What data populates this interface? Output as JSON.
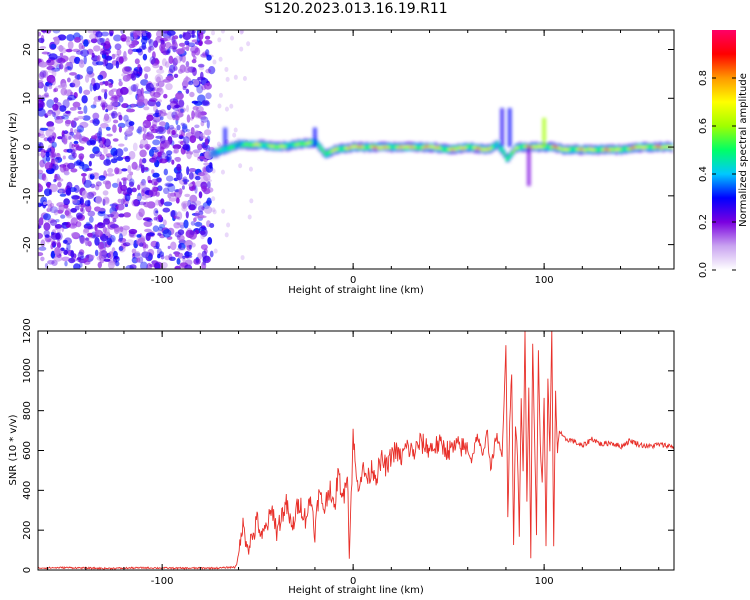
{
  "title": "S120.2023.013.16.19.R11",
  "colorbar": {
    "label": "Normalized spectral amplitude",
    "range": [
      0.0,
      1.0
    ],
    "ticks": [
      0.0,
      0.2,
      0.4,
      0.6,
      0.8
    ],
    "tick_labels": [
      "0.0",
      "0.2",
      "0.4",
      "0.6",
      "0.8"
    ],
    "colors": [
      "#ffffff",
      "#c9a3f0",
      "#7a00e0",
      "#0000ff",
      "#00c8ff",
      "#00ff66",
      "#a0ff00",
      "#ffff00",
      "#ff9900",
      "#ff0000",
      "#ff0066"
    ]
  },
  "chart_data": [
    {
      "type": "heatmap",
      "title": "",
      "xlabel": "Height of straight line (km)",
      "ylabel": "Frequency (Hz)",
      "xlim": [
        -165,
        168
      ],
      "ylim": [
        -25,
        24
      ],
      "x_ticks": [
        -100,
        0,
        100
      ],
      "x_tick_labels": [
        "-100",
        "0",
        "100"
      ],
      "y_ticks": [
        -20,
        -10,
        0,
        10,
        20
      ],
      "y_tick_labels": [
        "-20",
        "-10",
        "0",
        "10",
        "20"
      ],
      "noise_region_x": [
        -165,
        -74
      ],
      "signal_band": {
        "x": [
          -75,
          -68,
          -60,
          -50,
          -40,
          -30,
          -20,
          -15,
          -10,
          0,
          10,
          20,
          30,
          40,
          50,
          60,
          70,
          75,
          78,
          80,
          82,
          85,
          90,
          95,
          100,
          105,
          110,
          120,
          130,
          140,
          150,
          160,
          167
        ],
        "center_freq": [
          -1.5,
          -0.5,
          0.5,
          0.5,
          0.0,
          0.5,
          1.0,
          -1.5,
          -0.5,
          0.0,
          0.0,
          0.0,
          0.0,
          0.0,
          -0.5,
          0.0,
          -0.5,
          0.5,
          -1.0,
          -2.5,
          -1.5,
          0.0,
          0.0,
          0.0,
          0.0,
          0.0,
          -0.5,
          -0.5,
          -0.5,
          -0.5,
          0.0,
          0.0,
          0.0
        ],
        "peak_amplitude": [
          0.4,
          0.55,
          0.6,
          0.8,
          0.75,
          0.7,
          0.75,
          0.6,
          0.85,
          0.9,
          0.95,
          0.85,
          0.9,
          0.9,
          0.85,
          0.9,
          0.9,
          0.7,
          0.5,
          0.6,
          0.7,
          0.85,
          0.95,
          0.9,
          0.8,
          0.95,
          0.85,
          0.85,
          0.9,
          0.85,
          0.9,
          0.9,
          0.9
        ]
      }
    },
    {
      "type": "line",
      "title": "",
      "xlabel": "Height of straight line (km)",
      "ylabel": "SNR (10 * v/v)",
      "xlim": [
        -165,
        168
      ],
      "ylim": [
        0,
        1200
      ],
      "x_ticks": [
        -100,
        0,
        100
      ],
      "x_tick_labels": [
        "-100",
        "0",
        "100"
      ],
      "y_ticks": [
        0,
        200,
        400,
        600,
        800,
        1000,
        1200
      ],
      "y_tick_labels": [
        "0",
        "200",
        "400",
        "600",
        "800",
        "1000",
        "1200"
      ],
      "grid": false,
      "series": [
        {
          "color": "#e8302a",
          "x": [
            -165,
            -150,
            -130,
            -110,
            -90,
            -70,
            -62,
            -60,
            -58,
            -55,
            -52,
            -50,
            -48,
            -45,
            -42,
            -40,
            -38,
            -35,
            -32,
            -30,
            -28,
            -25,
            -22,
            -20,
            -18,
            -15,
            -12,
            -10,
            -8,
            -5,
            -3,
            -2,
            0,
            2,
            5,
            8,
            10,
            12,
            15,
            18,
            20,
            22,
            25,
            28,
            30,
            32,
            35,
            40,
            45,
            50,
            55,
            60,
            62,
            65,
            68,
            70,
            72,
            75,
            78,
            80,
            81,
            82,
            83,
            84,
            85,
            86,
            87,
            88,
            89,
            90,
            91,
            92,
            93,
            94,
            95,
            96,
            97,
            98,
            99,
            100,
            101,
            102,
            103,
            104,
            105,
            106,
            107,
            108,
            110,
            115,
            120,
            125,
            130,
            135,
            140,
            145,
            150,
            155,
            160,
            168
          ],
          "values": [
            10,
            12,
            8,
            11,
            9,
            10,
            15,
            60,
            230,
            120,
            180,
            260,
            150,
            230,
            300,
            190,
            260,
            330,
            200,
            290,
            340,
            260,
            360,
            190,
            380,
            310,
            430,
            280,
            480,
            360,
            520,
            80,
            680,
            420,
            500,
            460,
            520,
            470,
            550,
            510,
            580,
            600,
            560,
            620,
            600,
            590,
            640,
            610,
            630,
            600,
            620,
            610,
            550,
            680,
            560,
            720,
            500,
            680,
            560,
            1150,
            250,
            760,
            1000,
            120,
            720,
            600,
            180,
            880,
            500,
            1180,
            320,
            940,
            60,
            1150,
            680,
            200,
            1100,
            620,
            450,
            860,
            100,
            980,
            580,
            1200,
            120,
            880,
            600,
            700,
            660,
            650,
            620,
            660,
            630,
            640,
            620,
            650,
            630,
            620,
            630,
            620
          ]
        }
      ]
    }
  ]
}
